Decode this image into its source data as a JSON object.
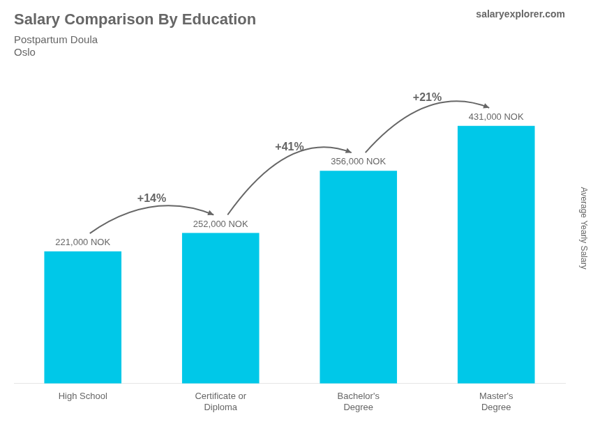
{
  "chart_data": {
    "type": "bar",
    "title": "Salary Comparison By Education",
    "subtitle": [
      "Postpartum Doula",
      "Oslo"
    ],
    "watermark": "salaryexplorer.com",
    "ylabel": "Average Yearly Salary",
    "categories": [
      "High School",
      "Certificate or\nDiploma",
      "Bachelor's\nDegree",
      "Master's\nDegree"
    ],
    "values": [
      221000,
      252000,
      356000,
      431000
    ],
    "value_labels": [
      "221,000 NOK",
      "252,000 NOK",
      "356,000 NOK",
      "431,000 NOK"
    ],
    "data_labels": true,
    "annotations": [
      "+14%",
      "+41%",
      "+21%"
    ],
    "color": "#00c8e8",
    "ylim": [
      0,
      520000
    ],
    "grid": false,
    "tick_labels": "x"
  }
}
